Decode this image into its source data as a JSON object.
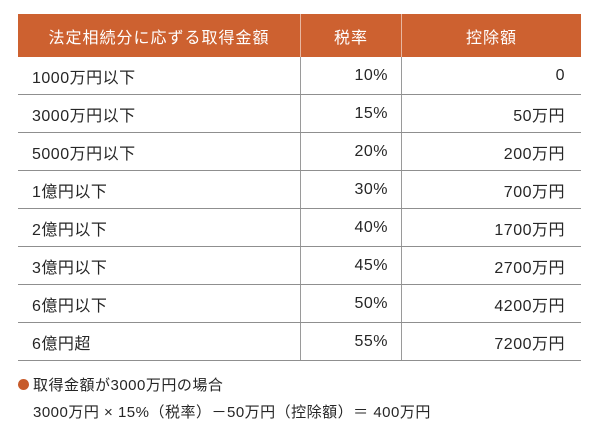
{
  "colors": {
    "header_bg": "#cd6130",
    "header_text": "#ffffff",
    "body_text": "#262626",
    "grid_line_horizontal": "#8f8f8f",
    "grid_line_vertical": "#9a9a9a",
    "bullet": "#c75b2b",
    "page_bg": "#ffffff"
  },
  "icons": {
    "bullet": "●"
  },
  "table": {
    "headers": [
      "法定相続分に応ずる取得金額",
      "税率",
      "控除額"
    ],
    "rows": [
      {
        "bracket": "1000万円以下",
        "rate": "10%",
        "deduction": "0"
      },
      {
        "bracket": "3000万円以下",
        "rate": "15%",
        "deduction": "50万円"
      },
      {
        "bracket": "5000万円以下",
        "rate": "20%",
        "deduction": "200万円"
      },
      {
        "bracket": "1億円以下",
        "rate": "30%",
        "deduction": "700万円"
      },
      {
        "bracket": "2億円以下",
        "rate": "40%",
        "deduction": "1700万円"
      },
      {
        "bracket": "3億円以下",
        "rate": "45%",
        "deduction": "2700万円"
      },
      {
        "bracket": "6億円以下",
        "rate": "50%",
        "deduction": "4200万円"
      },
      {
        "bracket": "6億円超",
        "rate": "55%",
        "deduction": "7200万円"
      }
    ]
  },
  "note": {
    "case_label": "取得金額が3000万円の場合",
    "formula": "3000万円 × 15%（税率）－50万円（控除額）＝ 400万円"
  }
}
